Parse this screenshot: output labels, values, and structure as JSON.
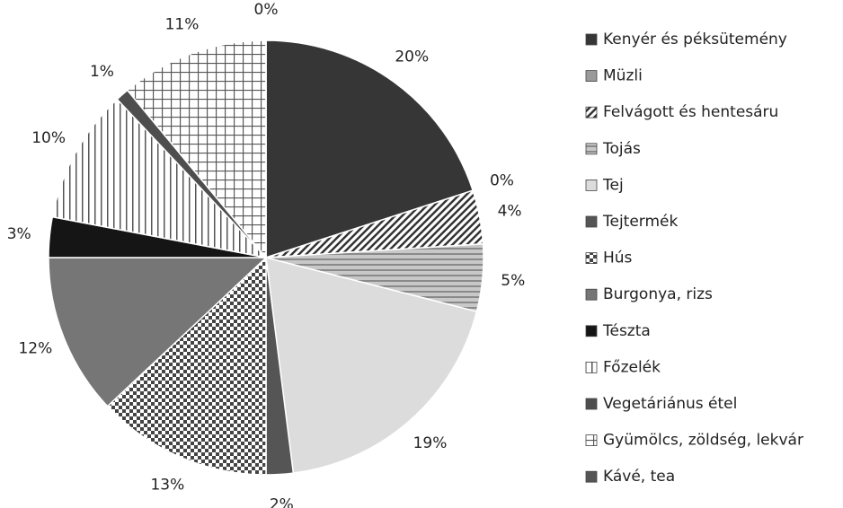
{
  "chart_data": {
    "type": "pie",
    "categories": [
      "Kenyér és péksütemény",
      "Müzli",
      "Felvágott és hentesáru",
      "Tojás",
      "Tej",
      "Tejtermék",
      "Hús",
      "Burgonya, rizs",
      "Tészta",
      "Főzelék",
      "Vegetáriánus étel",
      "Gyümölcs, zöldség, lekvár",
      "Kávé, tea"
    ],
    "values": [
      20,
      0,
      4,
      5,
      19,
      2,
      13,
      12,
      3,
      10,
      1,
      11,
      0
    ],
    "value_labels": [
      "20%",
      "0%",
      "4%",
      "5%",
      "19%",
      "2%",
      "13%",
      "12%",
      "3%",
      "10%",
      "1%",
      "11%",
      "0%"
    ],
    "colors": [
      "#363636",
      "#9a9a9a",
      "#333333",
      "#8a8a8a",
      "#dcdcdc",
      "#555555",
      "#444444",
      "#767676",
      "#151515",
      "#555555",
      "#4e4e4e",
      "#555555",
      "#555555"
    ],
    "patterns": [
      "solid",
      "solid",
      "diagonal",
      "hstripe",
      "solid",
      "solid",
      "checker",
      "solid",
      "solid",
      "vstripe",
      "solid",
      "grid",
      "solid"
    ],
    "legend": "right"
  }
}
